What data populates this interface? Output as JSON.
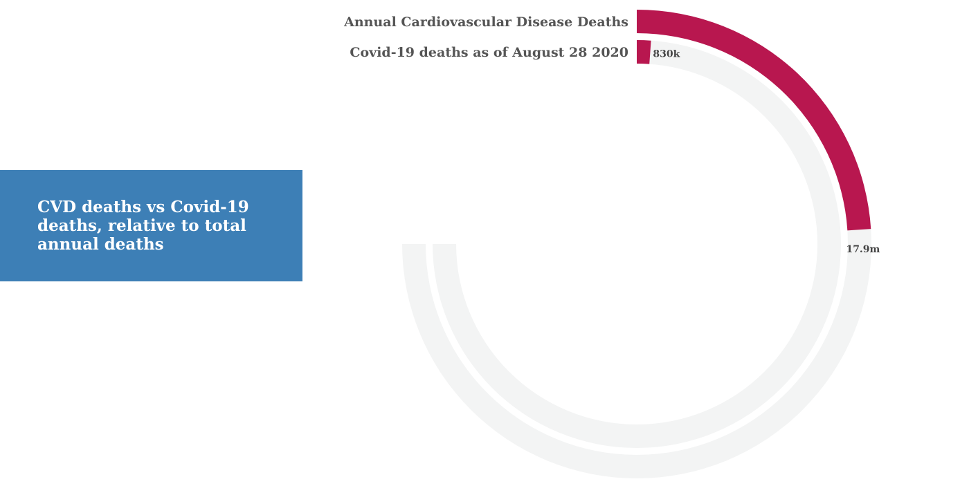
{
  "title": "CVD deaths vs Covid-19 deaths, relative to total annual deaths",
  "colors": {
    "title_bg": "#3d7fb6",
    "bar": "#b8174f",
    "track": "#f3f4f4",
    "label": "#555555"
  },
  "chart_data": {
    "type": "radial-bar",
    "title": "CVD deaths vs Covid-19 deaths, relative to total annual deaths",
    "total_annual_deaths": 56000000,
    "max_angle_degrees": 270,
    "categories": [
      "Annual Cardiovascular Disease Deaths",
      "Covid-19 deaths as of August 28 2020"
    ],
    "values": [
      17900000,
      830000
    ],
    "data_labels": [
      "17.9m",
      "830k"
    ]
  }
}
